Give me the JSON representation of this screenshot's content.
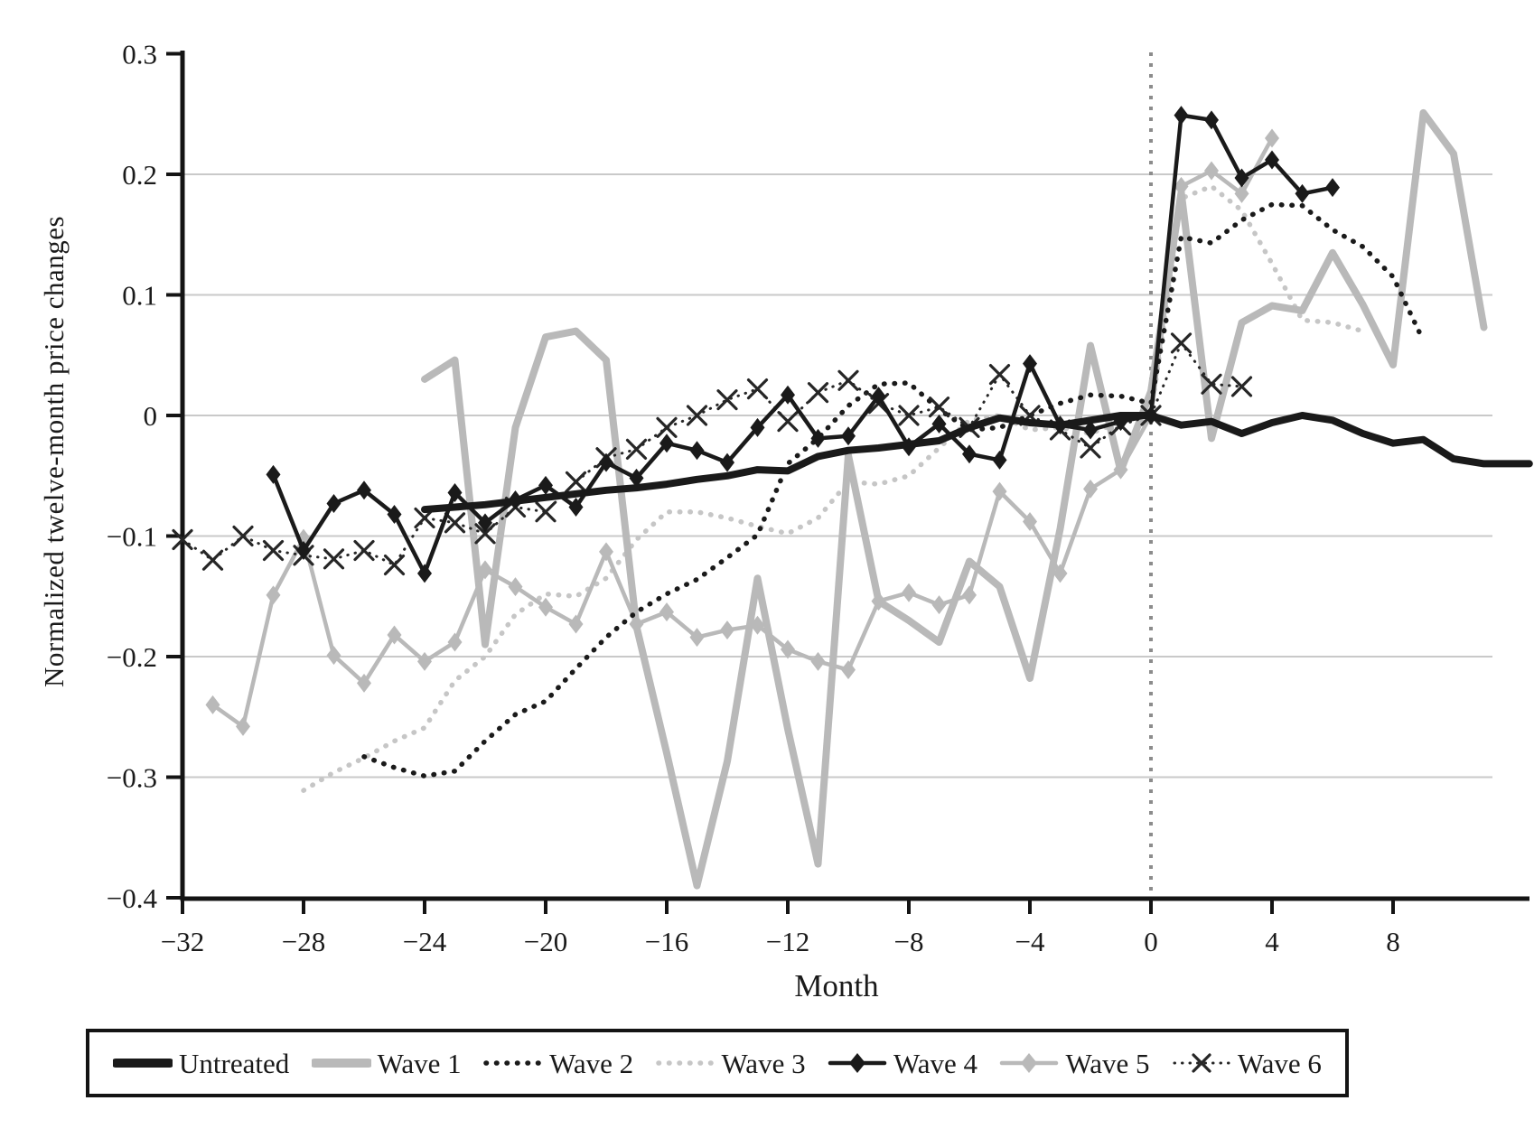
{
  "y_axis": {
    "title": "Normalized twelve-month price changes",
    "tick_labels": [
      "0.3",
      "0.2",
      "0.1",
      "0",
      "−0.1",
      "−0.2",
      "−0.3",
      "−0.4"
    ],
    "tick_values": [
      0.3,
      0.2,
      0.1,
      0,
      -0.1,
      -0.2,
      -0.3,
      -0.4
    ],
    "range": [
      -0.4,
      0.3
    ],
    "gridline_values": [
      0.2,
      0.1,
      0,
      -0.1,
      -0.2,
      -0.3
    ]
  },
  "x_axis": {
    "title": "Month",
    "tick_labels": [
      "−32",
      "−28",
      "−24",
      "−20",
      "−16",
      "−12",
      "−8",
      "−4",
      "0",
      "4",
      "8"
    ],
    "tick_values": [
      -32,
      -28,
      -24,
      -20,
      -16,
      -12,
      -8,
      -4,
      0,
      4,
      8
    ],
    "range": [
      -32.2,
      12.5
    ]
  },
  "reference_line": {
    "x": 0,
    "style": "dotted",
    "color": "#8c8c8c"
  },
  "colors": {
    "black": "#1a1a1a",
    "gray": "#b9b9b9",
    "light_gray_dotted": "#c6c6c6",
    "gridline": "#c9c9c9"
  },
  "chart_data": {
    "type": "line",
    "title": "",
    "xlabel": "Month",
    "ylabel": "Normalized twelve-month price changes",
    "ylim": [
      -0.4,
      0.3
    ],
    "xlim": [
      -32.2,
      12.5
    ],
    "grid": "horizontal",
    "legend_position": "bottom",
    "annotation": "vertical dotted line at month 0 (treatment start)",
    "series": [
      {
        "name": "Wave 3",
        "key": "wave3",
        "color": "#c6c6c6",
        "line": "dotted",
        "width": "thin",
        "marker": "none",
        "points": [
          [
            -28,
            -0.311
          ],
          [
            -27,
            -0.296
          ],
          [
            -26,
            -0.284
          ],
          [
            -25,
            -0.27
          ],
          [
            -24,
            -0.259
          ],
          [
            -23,
            -0.22
          ],
          [
            -22,
            -0.2
          ],
          [
            -21,
            -0.165
          ],
          [
            -20,
            -0.148
          ],
          [
            -19,
            -0.15
          ],
          [
            -18,
            -0.135
          ],
          [
            -17,
            -0.103
          ],
          [
            -16,
            -0.08
          ],
          [
            -15,
            -0.08
          ],
          [
            -14,
            -0.085
          ],
          [
            -13,
            -0.092
          ],
          [
            -12,
            -0.098
          ],
          [
            -11,
            -0.085
          ],
          [
            -10,
            -0.055
          ],
          [
            -9,
            -0.057
          ],
          [
            -8,
            -0.05
          ],
          [
            -7,
            -0.027
          ],
          [
            -6,
            -0.004
          ],
          [
            -5,
            0.0
          ],
          [
            -4,
            -0.012
          ],
          [
            -3,
            -0.01
          ],
          [
            -2,
            -0.015
          ],
          [
            -1,
            -0.005
          ],
          [
            0,
            0.0
          ],
          [
            1,
            0.18
          ],
          [
            2,
            0.19
          ],
          [
            3,
            0.17
          ],
          [
            4,
            0.126
          ],
          [
            5,
            0.079
          ],
          [
            6,
            0.077
          ],
          [
            7,
            0.07
          ]
        ]
      },
      {
        "name": "Wave 1",
        "key": "wave1",
        "color": "#b9b9b9",
        "line": "solid",
        "width": "thick",
        "marker": "none",
        "points": [
          [
            -24,
            0.03
          ],
          [
            -23,
            0.046
          ],
          [
            -22,
            -0.19
          ],
          [
            -21,
            -0.01
          ],
          [
            -20,
            0.065
          ],
          [
            -19,
            0.07
          ],
          [
            -18,
            0.046
          ],
          [
            -17,
            -0.175
          ],
          [
            -16,
            -0.28
          ],
          [
            -15,
            -0.39
          ],
          [
            -14,
            -0.287
          ],
          [
            -13,
            -0.135
          ],
          [
            -12,
            -0.26
          ],
          [
            -11,
            -0.372
          ],
          [
            -10,
            -0.033
          ],
          [
            -9,
            -0.154
          ],
          [
            -8,
            -0.17
          ],
          [
            -7,
            -0.188
          ],
          [
            -6,
            -0.121
          ],
          [
            -5,
            -0.142
          ],
          [
            -4,
            -0.218
          ],
          [
            -3,
            -0.094
          ],
          [
            -2,
            0.058
          ],
          [
            -1,
            -0.046
          ],
          [
            0,
            0.02
          ],
          [
            1,
            0.185
          ],
          [
            2,
            -0.019
          ],
          [
            3,
            0.077
          ],
          [
            4,
            0.091
          ],
          [
            5,
            0.087
          ],
          [
            6,
            0.135
          ],
          [
            7,
            0.092
          ],
          [
            8,
            0.042
          ],
          [
            9,
            0.251
          ],
          [
            10,
            0.217
          ],
          [
            11,
            0.073
          ]
        ]
      },
      {
        "name": "Wave 5",
        "key": "wave5",
        "color": "#b9b9b9",
        "line": "solid",
        "width": "thin",
        "marker": "diamond",
        "points": [
          [
            -31,
            -0.24
          ],
          [
            -30,
            -0.258
          ],
          [
            -29,
            -0.149
          ],
          [
            -28,
            -0.102
          ],
          [
            -27,
            -0.199
          ],
          [
            -26,
            -0.222
          ],
          [
            -25,
            -0.182
          ],
          [
            -24,
            -0.204
          ],
          [
            -23,
            -0.188
          ],
          [
            -22,
            -0.128
          ],
          [
            -21,
            -0.142
          ],
          [
            -20,
            -0.159
          ],
          [
            -19,
            -0.173
          ],
          [
            -18,
            -0.113
          ],
          [
            -17,
            -0.173
          ],
          [
            -16,
            -0.163
          ],
          [
            -15,
            -0.184
          ],
          [
            -14,
            -0.178
          ],
          [
            -13,
            -0.174
          ],
          [
            -12,
            -0.194
          ],
          [
            -11,
            -0.204
          ],
          [
            -10,
            -0.211
          ],
          [
            -9,
            -0.154
          ],
          [
            -8,
            -0.147
          ],
          [
            -7,
            -0.157
          ],
          [
            -6,
            -0.149
          ],
          [
            -5,
            -0.063
          ],
          [
            -4,
            -0.088
          ],
          [
            -3,
            -0.131
          ],
          [
            -2,
            -0.061
          ],
          [
            -1,
            -0.045
          ],
          [
            0,
            0.0
          ],
          [
            1,
            0.19
          ],
          [
            2,
            0.203
          ],
          [
            3,
            0.184
          ],
          [
            4,
            0.23
          ]
        ]
      },
      {
        "name": "Wave 2",
        "key": "wave2",
        "color": "#1a1a1a",
        "line": "dotted",
        "width": "thin",
        "marker": "none",
        "points": [
          [
            -26,
            -0.283
          ],
          [
            -25,
            -0.292
          ],
          [
            -24,
            -0.299
          ],
          [
            -23,
            -0.295
          ],
          [
            -22,
            -0.27
          ],
          [
            -21,
            -0.248
          ],
          [
            -20,
            -0.237
          ],
          [
            -19,
            -0.21
          ],
          [
            -18,
            -0.184
          ],
          [
            -17,
            -0.163
          ],
          [
            -16,
            -0.148
          ],
          [
            -15,
            -0.136
          ],
          [
            -14,
            -0.118
          ],
          [
            -13,
            -0.099
          ],
          [
            -12,
            -0.04
          ],
          [
            -11,
            -0.019
          ],
          [
            -10,
            0.008
          ],
          [
            -9,
            0.026
          ],
          [
            -8,
            0.027
          ],
          [
            -7,
            0.005
          ],
          [
            -6,
            -0.012
          ],
          [
            -5,
            -0.01
          ],
          [
            -4,
            0.0
          ],
          [
            -3,
            0.01
          ],
          [
            -2,
            0.017
          ],
          [
            -1,
            0.016
          ],
          [
            0,
            0.01
          ],
          [
            1,
            0.148
          ],
          [
            2,
            0.143
          ],
          [
            3,
            0.162
          ],
          [
            4,
            0.175
          ],
          [
            5,
            0.174
          ],
          [
            6,
            0.154
          ],
          [
            7,
            0.14
          ],
          [
            8,
            0.115
          ],
          [
            9,
            0.062
          ]
        ]
      },
      {
        "name": "Wave 6",
        "key": "wave6",
        "color": "#262626",
        "line": "dotted",
        "width": "hairline",
        "marker": "x",
        "points": [
          [
            -32,
            -0.103
          ],
          [
            -31,
            -0.12
          ],
          [
            -30,
            -0.1
          ],
          [
            -29,
            -0.112
          ],
          [
            -28,
            -0.116
          ],
          [
            -27,
            -0.119
          ],
          [
            -26,
            -0.112
          ],
          [
            -25,
            -0.124
          ],
          [
            -24,
            -0.085
          ],
          [
            -23,
            -0.089
          ],
          [
            -22,
            -0.098
          ],
          [
            -21,
            -0.076
          ],
          [
            -20,
            -0.08
          ],
          [
            -19,
            -0.055
          ],
          [
            -18,
            -0.035
          ],
          [
            -17,
            -0.028
          ],
          [
            -16,
            -0.01
          ],
          [
            -15,
            0.0
          ],
          [
            -14,
            0.013
          ],
          [
            -13,
            0.022
          ],
          [
            -12,
            -0.005
          ],
          [
            -11,
            0.019
          ],
          [
            -10,
            0.029
          ],
          [
            -9,
            0.01
          ],
          [
            -8,
            0.0
          ],
          [
            -7,
            0.007
          ],
          [
            -6,
            -0.01
          ],
          [
            -5,
            0.034
          ],
          [
            -4,
            0.0
          ],
          [
            -3,
            -0.012
          ],
          [
            -2,
            -0.027
          ],
          [
            -1,
            -0.008
          ],
          [
            0,
            0.0
          ],
          [
            1,
            0.06
          ],
          [
            2,
            0.026
          ],
          [
            3,
            0.024
          ]
        ]
      },
      {
        "name": "Untreated",
        "key": "untreated",
        "color": "#1a1a1a",
        "line": "solid",
        "width": "thick",
        "marker": "none",
        "points": [
          [
            -24,
            -0.078
          ],
          [
            -23,
            -0.076
          ],
          [
            -22,
            -0.074
          ],
          [
            -21,
            -0.071
          ],
          [
            -20,
            -0.068
          ],
          [
            -19,
            -0.065
          ],
          [
            -18,
            -0.062
          ],
          [
            -17,
            -0.06
          ],
          [
            -16,
            -0.057
          ],
          [
            -15,
            -0.053
          ],
          [
            -14,
            -0.05
          ],
          [
            -13,
            -0.045
          ],
          [
            -12,
            -0.046
          ],
          [
            -11,
            -0.034
          ],
          [
            -10,
            -0.029
          ],
          [
            -9,
            -0.027
          ],
          [
            -8,
            -0.024
          ],
          [
            -7,
            -0.021
          ],
          [
            -6,
            -0.01
          ],
          [
            -5,
            -0.002
          ],
          [
            -4,
            -0.006
          ],
          [
            -3,
            -0.008
          ],
          [
            -2,
            -0.004
          ],
          [
            -1,
            0.0
          ],
          [
            0,
            0.0
          ],
          [
            1,
            -0.008
          ],
          [
            2,
            -0.005
          ],
          [
            3,
            -0.015
          ],
          [
            4,
            -0.006
          ],
          [
            5,
            0.0
          ],
          [
            6,
            -0.004
          ],
          [
            7,
            -0.015
          ],
          [
            8,
            -0.023
          ],
          [
            9,
            -0.02
          ],
          [
            10,
            -0.036
          ],
          [
            11,
            -0.04
          ],
          [
            12.5,
            -0.04
          ]
        ]
      },
      {
        "name": "Wave 4",
        "key": "wave4",
        "color": "#1a1a1a",
        "line": "solid",
        "width": "thin",
        "marker": "diamond",
        "points": [
          [
            -29,
            -0.049
          ],
          [
            -28,
            -0.112
          ],
          [
            -27,
            -0.073
          ],
          [
            -26,
            -0.062
          ],
          [
            -25,
            -0.082
          ],
          [
            -24,
            -0.131
          ],
          [
            -23,
            -0.064
          ],
          [
            -22,
            -0.089
          ],
          [
            -21,
            -0.07
          ],
          [
            -20,
            -0.058
          ],
          [
            -19,
            -0.076
          ],
          [
            -18,
            -0.039
          ],
          [
            -17,
            -0.052
          ],
          [
            -16,
            -0.023
          ],
          [
            -15,
            -0.029
          ],
          [
            -14,
            -0.039
          ],
          [
            -13,
            -0.01
          ],
          [
            -12,
            0.017
          ],
          [
            -11,
            -0.019
          ],
          [
            -10,
            -0.017
          ],
          [
            -9,
            0.016
          ],
          [
            -8,
            -0.026
          ],
          [
            -7,
            -0.007
          ],
          [
            -6,
            -0.032
          ],
          [
            -5,
            -0.037
          ],
          [
            -4,
            0.043
          ],
          [
            -3,
            -0.008
          ],
          [
            -2,
            -0.012
          ],
          [
            -1,
            -0.005
          ],
          [
            0,
            0.0
          ],
          [
            1,
            0.249
          ],
          [
            2,
            0.245
          ],
          [
            3,
            0.197
          ],
          [
            4,
            0.212
          ],
          [
            5,
            0.184
          ],
          [
            6,
            0.189
          ]
        ]
      }
    ]
  },
  "legend_order": [
    "untreated",
    "wave1",
    "wave2",
    "wave3",
    "wave4",
    "wave5",
    "wave6"
  ]
}
